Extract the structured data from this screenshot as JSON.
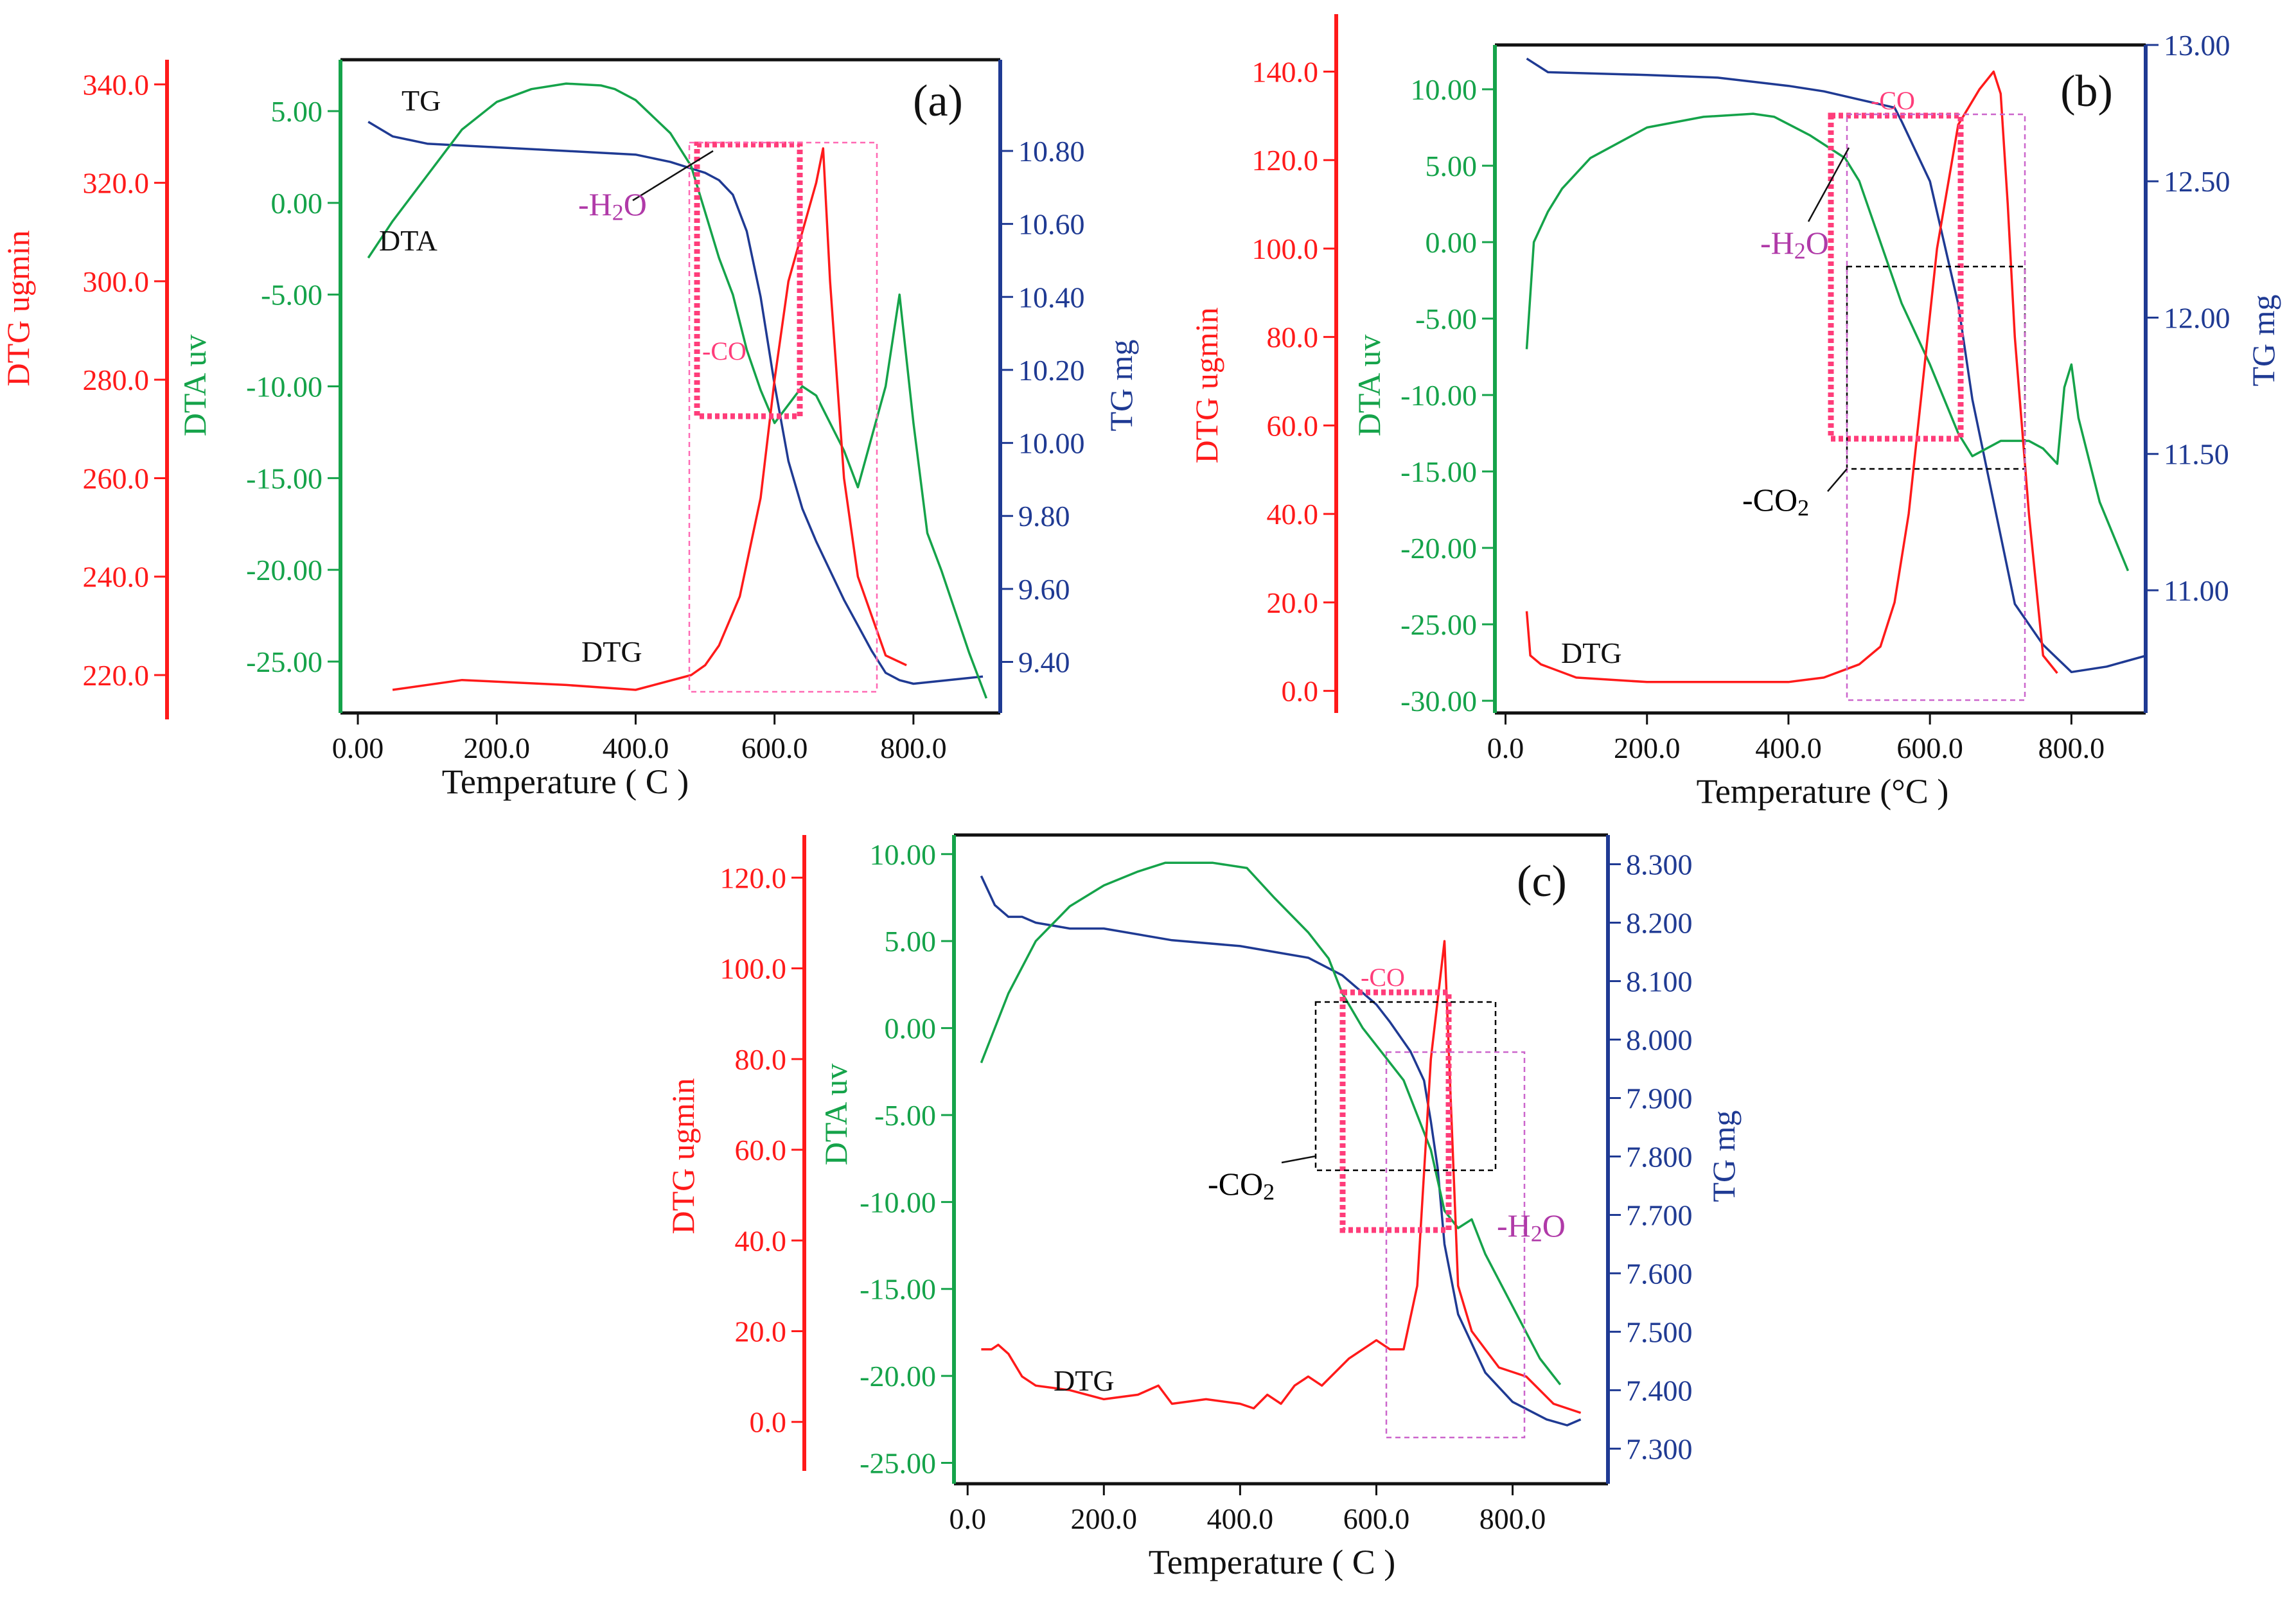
{
  "chart_data": [
    {
      "type": "line",
      "panel_label": "(a)",
      "xlabel": "Temperature (  C )",
      "xlim": [
        -25,
        925
      ],
      "x_ticks": [
        0,
        200,
        400,
        600,
        800
      ],
      "x_tick_labels": [
        "0.00",
        "200.0",
        "400.0",
        "600.0",
        "800.0"
      ],
      "axes": {
        "dtg": {
          "label": "DTG ugmin",
          "color": "#ff1a1a",
          "lim": [
            211,
            345
          ],
          "ticks": [
            220,
            240,
            260,
            280,
            300,
            320,
            340
          ],
          "tick_labels": [
            "220.0",
            "240.0",
            "260.0",
            "280.0",
            "300.0",
            "320.0",
            "340.0"
          ]
        },
        "dta": {
          "label": "DTA uv",
          "color": "#15a34a",
          "lim": [
            -27.8,
            7.8
          ],
          "ticks": [
            -25,
            -20,
            -15,
            -10,
            -5,
            0,
            5
          ],
          "tick_labels": [
            "-25.00",
            "-20.00",
            "-15.00",
            "-10.00",
            "-5.00",
            "0.00",
            "5.00"
          ]
        },
        "tg": {
          "label": "TG mg",
          "color": "#1f3a93",
          "lim": [
            9.26,
            11.05
          ],
          "ticks": [
            9.4,
            9.6,
            9.8,
            10.0,
            10.2,
            10.4,
            10.6,
            10.8
          ],
          "tick_labels": [
            "9.40",
            "9.60",
            "9.80",
            "10.00",
            "10.20",
            "10.40",
            "10.60",
            "10.80"
          ]
        }
      },
      "series": [
        {
          "name": "TG",
          "axis": "tg",
          "x": [
            15,
            50,
            100,
            200,
            300,
            400,
            450,
            500,
            520,
            540,
            560,
            580,
            600,
            620,
            640,
            660,
            680,
            700,
            720,
            740,
            760,
            780,
            800,
            850,
            900
          ],
          "y": [
            10.88,
            10.84,
            10.82,
            10.81,
            10.8,
            10.79,
            10.77,
            10.74,
            10.72,
            10.68,
            10.58,
            10.4,
            10.16,
            9.95,
            9.82,
            9.73,
            9.65,
            9.57,
            9.5,
            9.43,
            9.37,
            9.35,
            9.34,
            9.35,
            9.36
          ]
        },
        {
          "name": "DTA",
          "axis": "dta",
          "x": [
            15,
            50,
            100,
            150,
            200,
            250,
            300,
            350,
            370,
            400,
            450,
            480,
            500,
            520,
            540,
            560,
            580,
            600,
            620,
            640,
            660,
            700,
            720,
            760,
            780,
            800,
            820,
            840,
            880,
            905
          ],
          "y": [
            -3,
            -1,
            1.5,
            4,
            5.5,
            6.2,
            6.5,
            6.4,
            6.2,
            5.6,
            3.8,
            2.0,
            -0.5,
            -3,
            -5,
            -8,
            -10.2,
            -12,
            -11,
            -10,
            -10.5,
            -13.5,
            -15.5,
            -10,
            -5,
            -12,
            -18,
            -20,
            -24.5,
            -27
          ]
        },
        {
          "name": "DTG",
          "axis": "dtg",
          "x": [
            50,
            150,
            300,
            400,
            480,
            500,
            520,
            550,
            580,
            600,
            620,
            640,
            660,
            670,
            680,
            700,
            720,
            760,
            790
          ],
          "y": [
            217,
            219,
            218,
            217,
            220,
            222,
            226,
            236,
            256,
            280,
            300,
            310,
            320,
            327,
            300,
            260,
            240,
            224,
            222
          ]
        }
      ],
      "annotations": [
        {
          "text": "TG",
          "kind": "series-label"
        },
        {
          "text": "DTA",
          "kind": "series-label"
        },
        {
          "text": "DTG",
          "kind": "series-label"
        },
        {
          "text": "-H2O",
          "kind": "region",
          "color": "#b03aa8"
        },
        {
          "text": "-CO",
          "kind": "region",
          "color": "#ff3d7a"
        }
      ]
    },
    {
      "type": "line",
      "panel_label": "(b)",
      "xlabel": "Temperature (°C )",
      "xlim": [
        -15,
        905
      ],
      "x_ticks": [
        0,
        200,
        400,
        600,
        800
      ],
      "x_tick_labels": [
        "0.0",
        "200.0",
        "400.0",
        "600.0",
        "800.0"
      ],
      "axes": {
        "dtg": {
          "label": "DTG ugmin",
          "color": "#ff1a1a",
          "lim": [
            -5,
            153
          ],
          "ticks": [
            0,
            20,
            40,
            60,
            80,
            100,
            120,
            140
          ],
          "tick_labels": [
            "0.0",
            "20.0",
            "40.0",
            "60.0",
            "80.0",
            "100.0",
            "120.0",
            "140.0"
          ]
        },
        "dta": {
          "label": "DTA uv",
          "color": "#15a34a",
          "lim": [
            -30.8,
            12.9
          ],
          "ticks": [
            -30,
            -25,
            -20,
            -15,
            -10,
            -5,
            0,
            5,
            10
          ],
          "tick_labels": [
            "-30.00",
            "-25.00",
            "-20.00",
            "-15.00",
            "-10.00",
            "-5.00",
            "0.00",
            "5.00",
            "10.00"
          ]
        },
        "tg": {
          "label": "TG mg",
          "color": "#1f3a93",
          "lim": [
            10.55,
            13.0
          ],
          "ticks": [
            11.0,
            11.5,
            12.0,
            12.5,
            13.0
          ],
          "tick_labels": [
            "11.00",
            "11.50",
            "12.00",
            "12.50",
            "13.00"
          ]
        }
      },
      "series": [
        {
          "name": "TG",
          "axis": "tg",
          "x": [
            30,
            60,
            200,
            300,
            400,
            450,
            500,
            550,
            560,
            600,
            640,
            660,
            700,
            720,
            760,
            800,
            850,
            905
          ],
          "y": [
            12.95,
            12.9,
            12.89,
            12.88,
            12.85,
            12.83,
            12.8,
            12.77,
            12.72,
            12.5,
            12.05,
            11.7,
            11.2,
            10.95,
            10.8,
            10.7,
            10.72,
            10.76
          ]
        },
        {
          "name": "DTA",
          "axis": "dta",
          "x": [
            30,
            40,
            60,
            80,
            120,
            200,
            280,
            350,
            380,
            430,
            480,
            500,
            530,
            560,
            600,
            640,
            660,
            700,
            740,
            760,
            780,
            790,
            800,
            810,
            840,
            880
          ],
          "y": [
            -7,
            0,
            2,
            3.5,
            5.5,
            7.5,
            8.2,
            8.4,
            8.2,
            7.0,
            5.5,
            4.0,
            0,
            -4,
            -8,
            -12.5,
            -14,
            -13,
            -13,
            -13.5,
            -14.5,
            -9.5,
            -8,
            -11.5,
            -17,
            -21.5
          ]
        },
        {
          "name": "DTG",
          "axis": "dtg",
          "x": [
            30,
            35,
            50,
            100,
            200,
            300,
            400,
            450,
            500,
            530,
            550,
            570,
            590,
            610,
            640,
            670,
            690,
            700,
            710,
            720,
            740,
            760,
            780
          ],
          "y": [
            18,
            8,
            6,
            3,
            2,
            2,
            2,
            3,
            6,
            10,
            20,
            40,
            70,
            100,
            128,
            136,
            140,
            135,
            110,
            80,
            40,
            8,
            4
          ]
        }
      ],
      "annotations": [
        {
          "text": "DTG",
          "kind": "series-label"
        },
        {
          "text": "-H2O",
          "kind": "region",
          "color": "#b03aa8"
        },
        {
          "text": "-CO",
          "kind": "region",
          "color": "#ff3d7a"
        },
        {
          "text": "-CO2",
          "kind": "region",
          "color": "#000000"
        }
      ]
    },
    {
      "type": "line",
      "panel_label": "(c)",
      "xlabel": "Temperature (  C )",
      "xlim": [
        -20,
        940
      ],
      "x_ticks": [
        0,
        200,
        400,
        600,
        800
      ],
      "x_tick_labels": [
        "0.0",
        "200.0",
        "400.0",
        "600.0",
        "800.0"
      ],
      "axes": {
        "dtg": {
          "label": "DTG ugmin",
          "color": "#ff1a1a",
          "lim": [
            -10.8,
            129.4
          ],
          "ticks": [
            0,
            20,
            40,
            60,
            80,
            100,
            120
          ],
          "tick_labels": [
            "0.0",
            "20.0",
            "40.0",
            "60.0",
            "80.0",
            "100.0",
            "120.0"
          ]
        },
        "dta": {
          "label": "DTA uv",
          "color": "#15a34a",
          "lim": [
            -26.2,
            11.1
          ],
          "ticks": [
            -25,
            -20,
            -15,
            -10,
            -5,
            0,
            5,
            10
          ],
          "tick_labels": [
            "-25.00",
            "-20.00",
            "-15.00",
            "-10.00",
            "-5.00",
            "0.00",
            "5.00",
            "10.00"
          ]
        },
        "tg": {
          "label": "TG mg",
          "color": "#1f3a93",
          "lim": [
            7.24,
            8.35
          ],
          "ticks": [
            7.3,
            7.4,
            7.5,
            7.6,
            7.7,
            7.8,
            7.9,
            8.0,
            8.1,
            8.2,
            8.3
          ],
          "tick_labels": [
            "7.300",
            "7.400",
            "7.500",
            "7.600",
            "7.700",
            "7.800",
            "7.900",
            "8.000",
            "8.100",
            "8.200",
            "8.300"
          ]
        }
      },
      "series": [
        {
          "name": "TG",
          "axis": "tg",
          "x": [
            20,
            40,
            60,
            80,
            100,
            150,
            200,
            300,
            400,
            450,
            500,
            550,
            600,
            620,
            650,
            670,
            680,
            690,
            700,
            720,
            760,
            800,
            850,
            880,
            900
          ],
          "y": [
            8.28,
            8.23,
            8.21,
            8.21,
            8.2,
            8.19,
            8.19,
            8.17,
            8.16,
            8.15,
            8.14,
            8.11,
            8.06,
            8.03,
            7.98,
            7.93,
            7.86,
            7.78,
            7.65,
            7.53,
            7.43,
            7.38,
            7.35,
            7.34,
            7.35
          ]
        },
        {
          "name": "DTA",
          "axis": "dta",
          "x": [
            20,
            60,
            100,
            150,
            200,
            250,
            290,
            320,
            360,
            410,
            450,
            500,
            530,
            550,
            580,
            610,
            640,
            660,
            680,
            700,
            720,
            740,
            760,
            800,
            840,
            870
          ],
          "y": [
            -2,
            2,
            5,
            7,
            8.2,
            9,
            9.5,
            9.5,
            9.5,
            9.2,
            7.5,
            5.5,
            4,
            2,
            0,
            -1.5,
            -3,
            -5,
            -7,
            -10.5,
            -11.5,
            -11,
            -13,
            -16,
            -19,
            -20.5
          ]
        },
        {
          "name": "DTG",
          "axis": "dtg",
          "x": [
            20,
            35,
            45,
            60,
            80,
            100,
            150,
            200,
            250,
            280,
            300,
            350,
            400,
            420,
            440,
            460,
            480,
            500,
            520,
            560,
            600,
            620,
            640,
            660,
            680,
            700,
            720,
            740,
            780,
            820,
            860,
            900
          ],
          "y": [
            16,
            16,
            17,
            15,
            10,
            8,
            7,
            5,
            6,
            8,
            4,
            5,
            4,
            3,
            6,
            4,
            8,
            10,
            8,
            14,
            18,
            16,
            16,
            30,
            80,
            106,
            30,
            20,
            12,
            10,
            4,
            2
          ]
        }
      ],
      "annotations": [
        {
          "text": "DTG",
          "kind": "series-label"
        },
        {
          "text": "-H2O",
          "kind": "region",
          "color": "#b03aa8"
        },
        {
          "text": "-CO",
          "kind": "region",
          "color": "#ff3d7a"
        },
        {
          "text": "-CO2",
          "kind": "region",
          "color": "#000000"
        }
      ]
    }
  ]
}
